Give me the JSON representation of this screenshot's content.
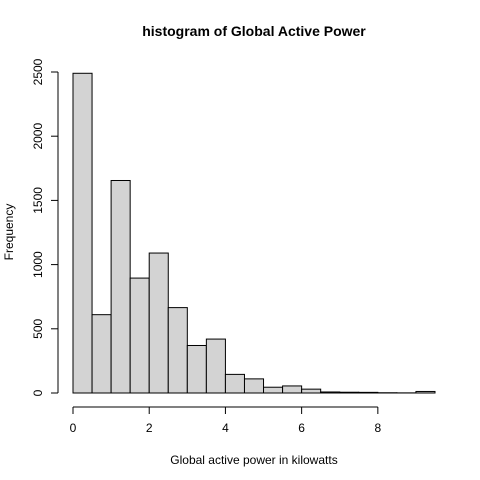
{
  "chart_data": {
    "type": "bar",
    "title": "histogram of Global Active Power",
    "xlabel": "Global active power in kilowatts",
    "ylabel": "Frequency",
    "bins": [
      [
        0.0,
        0.5
      ],
      [
        0.5,
        1.0
      ],
      [
        1.0,
        1.5
      ],
      [
        1.5,
        2.0
      ],
      [
        2.0,
        2.5
      ],
      [
        2.5,
        3.0
      ],
      [
        3.0,
        3.5
      ],
      [
        3.5,
        4.0
      ],
      [
        4.0,
        4.5
      ],
      [
        4.5,
        5.0
      ],
      [
        5.0,
        5.5
      ],
      [
        5.5,
        6.0
      ],
      [
        6.0,
        6.5
      ],
      [
        6.5,
        7.0
      ],
      [
        7.0,
        7.5
      ],
      [
        7.5,
        8.0
      ],
      [
        8.0,
        8.5
      ],
      [
        8.5,
        9.0
      ],
      [
        9.0,
        9.5
      ]
    ],
    "values": [
      2490,
      610,
      1655,
      895,
      1090,
      665,
      370,
      420,
      145,
      110,
      45,
      55,
      30,
      8,
      6,
      5,
      2,
      1,
      12
    ],
    "xlim": [
      0,
      9.5
    ],
    "ylim": [
      0,
      2500
    ],
    "xticks": [
      0,
      2,
      4,
      6,
      8
    ],
    "yticks": [
      0,
      500,
      1000,
      1500,
      2000,
      2500
    ],
    "bar_color": "#d3d3d3",
    "edge_color": "#000000",
    "grid": false
  }
}
